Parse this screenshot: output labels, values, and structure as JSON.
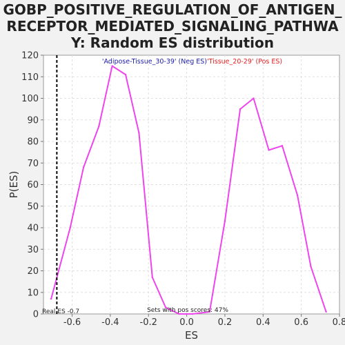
{
  "title_lines": [
    "GOBP_POSITIVE_REGULATION_OF_ANTIGEN_",
    "RECEPTOR_MEDIATED_SIGNALING_PATHWA",
    "Y: Random ES distribution"
  ],
  "chart_data": {
    "type": "line",
    "xlabel": "ES",
    "ylabel": "P(ES)",
    "xlim": [
      -0.75,
      0.8
    ],
    "ylim": [
      0,
      120
    ],
    "x_ticks": [
      "-0.6",
      "-0.4",
      "-0.2",
      "0.0",
      "0.2",
      "0.4",
      "0.6",
      "0.8"
    ],
    "x_tick_values": [
      -0.6,
      -0.4,
      -0.2,
      0.0,
      0.2,
      0.4,
      0.6,
      0.8
    ],
    "y_ticks": [
      "0",
      "10",
      "20",
      "30",
      "40",
      "50",
      "60",
      "70",
      "80",
      "90",
      "100",
      "110",
      "120"
    ],
    "y_tick_values": [
      0,
      10,
      20,
      30,
      40,
      50,
      60,
      70,
      80,
      90,
      100,
      110,
      120
    ],
    "grid": true,
    "series": [
      {
        "color": "#ee44ee",
        "x": [
          -0.71,
          -0.61,
          -0.54,
          -0.46,
          -0.39,
          -0.32,
          -0.25,
          -0.18,
          -0.11,
          -0.04,
          0.03,
          0.12,
          0.2,
          0.28,
          0.35,
          0.43,
          0.5,
          0.58,
          0.65,
          0.73
        ],
        "y": [
          7,
          40,
          68,
          87,
          115,
          111,
          84,
          17,
          3,
          0,
          0,
          1,
          43,
          95,
          100,
          76,
          78,
          55,
          22,
          1
        ]
      }
    ],
    "real_es": {
      "x": -0.68,
      "label": "Real ES -0.7",
      "color": "#000000"
    },
    "annotations": {
      "neg_label": "'Adipose-Tissue_30-39' (Neg ES)",
      "neg_color": "#1a1aaa",
      "pos_label": "'Tissue_20-29' (Pos ES)",
      "pos_color": "#e02020",
      "pos_scores": "Sets with pos scores: 47%"
    }
  }
}
